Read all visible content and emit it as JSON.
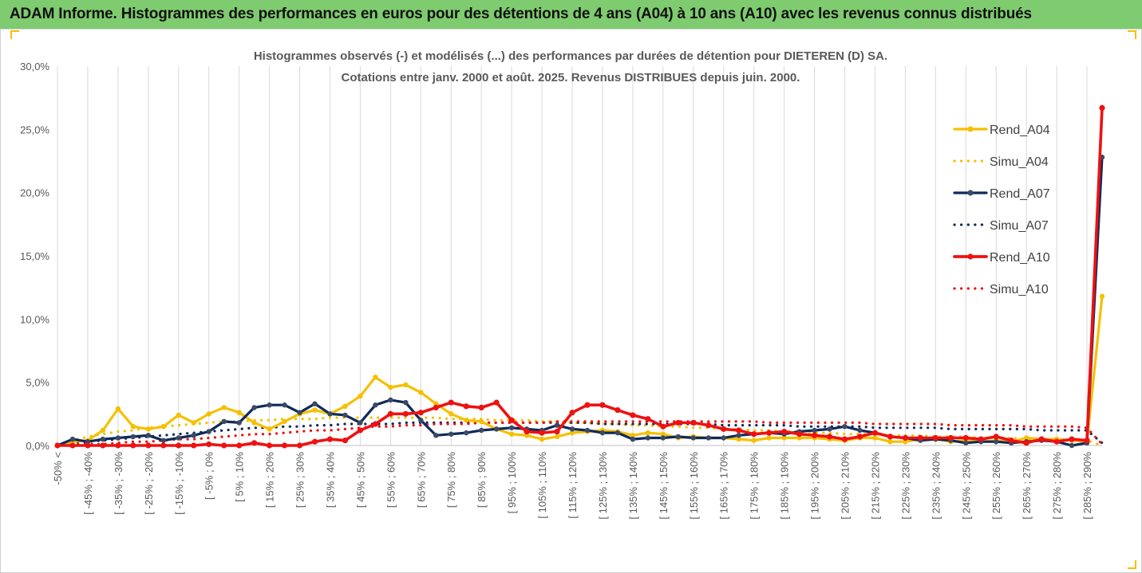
{
  "banner": {
    "title": "ADAM Informe. Histogrammes des performances en euros pour des détentions de 4 ans (A04) à 10 ans (A10) avec les revenus connus distribués"
  },
  "colors": {
    "banner": "#7fcb6f",
    "A04": "#f5c000",
    "A07": "#0f2a5a",
    "A10": "#ee1111",
    "grid": "#d9d9d9"
  },
  "chart_data": {
    "type": "line",
    "title": "Histogrammes observés (-) et modélisés (...) des performances par durées de détention pour DIETEREN (D) SA.",
    "subtitle": "Cotations entre janv. 2000 et août. 2025. Revenus DISTRIBUES depuis juin. 2000.",
    "ylim": [
      0,
      30
    ],
    "yticks": [
      "0,0%",
      "5,0%",
      "10,0%",
      "15,0%",
      "20,0%",
      "25,0%",
      "30,0%"
    ],
    "yticks_values": [
      0,
      5,
      10,
      15,
      20,
      25,
      30
    ],
    "xtick_labels": [
      "-50% <",
      "[ -45% ; -40%",
      "[ -35% ; -30%",
      "[ -25% ; -20%",
      "[ -15% ; -10%",
      "[ -5% ; 0%",
      "[ 5% ; 10%",
      "[ 15% ; 20%",
      "[ 25% ; 30%",
      "[ 35% ; 40%",
      "[ 45% ; 50%",
      "[ 55% ; 60%",
      "[ 65% ; 70%",
      "[ 75% ; 80%",
      "[ 85% ; 90%",
      "[ 95% ; 100%",
      "[ 105% ; 110%",
      "[ 115% ; 120%",
      "[ 125% ; 130%",
      "[ 135% ; 140%",
      "[ 145% ; 150%",
      "[ 155% ; 160%",
      "[ 165% ; 170%",
      "[ 175% ; 180%",
      "[ 185% ; 190%",
      "[ 195% ; 200%",
      "[ 205% ; 210%",
      "[ 215% ; 220%",
      "[ 225% ; 230%",
      "[ 235% ; 240%",
      "[ 245% ; 250%",
      "[ 255% ; 260%",
      "[ 265% ; 270%",
      "[ 275% ; 280%",
      "[ 285% ; 290%"
    ],
    "n_bins": 70,
    "legend_position": "right",
    "grid": "vertical",
    "series": [
      {
        "name": "Rend_A04",
        "style": "solid",
        "color": "#f5c000",
        "values": [
          0.0,
          0.3,
          0.4,
          1.2,
          2.9,
          1.5,
          1.3,
          1.5,
          2.4,
          1.8,
          2.5,
          3.0,
          2.6,
          1.8,
          1.3,
          1.9,
          2.5,
          2.8,
          2.5,
          3.1,
          3.9,
          5.4,
          4.6,
          4.8,
          4.2,
          3.3,
          2.5,
          2.0,
          1.9,
          1.3,
          0.9,
          0.8,
          0.5,
          0.7,
          1.0,
          1.1,
          1.2,
          1.1,
          0.8,
          1.0,
          0.9,
          0.6,
          0.7,
          0.6,
          0.6,
          0.5,
          0.4,
          0.6,
          0.6,
          0.6,
          0.6,
          0.5,
          0.4,
          0.6,
          0.6,
          0.3,
          0.3,
          0.5,
          0.5,
          0.3,
          0.4,
          0.3,
          0.4,
          0.3,
          0.6,
          0.5,
          0.5,
          0.4,
          0.3,
          11.8
        ]
      },
      {
        "name": "Simu_A04",
        "style": "dotted",
        "color": "#f5c000",
        "values": [
          0.1,
          0.4,
          0.7,
          0.9,
          1.1,
          1.2,
          1.4,
          1.5,
          1.6,
          1.7,
          1.8,
          1.9,
          1.9,
          2.0,
          2.0,
          2.1,
          2.1,
          2.1,
          2.2,
          2.2,
          2.2,
          2.2,
          2.2,
          2.2,
          2.2,
          2.2,
          2.1,
          2.1,
          2.1,
          2.0,
          2.0,
          2.0,
          1.9,
          1.9,
          1.8,
          1.8,
          1.7,
          1.7,
          1.6,
          1.6,
          1.5,
          1.5,
          1.4,
          1.4,
          1.3,
          1.3,
          1.2,
          1.2,
          1.1,
          1.1,
          1.0,
          1.0,
          0.9,
          0.9,
          0.9,
          0.8,
          0.8,
          0.8,
          0.7,
          0.7,
          0.7,
          0.6,
          0.6,
          0.6,
          0.5,
          0.5,
          0.5,
          0.5,
          0.4,
          0.0
        ]
      },
      {
        "name": "Rend_A07",
        "style": "solid",
        "color": "#0f2a5a",
        "values": [
          0.0,
          0.5,
          0.3,
          0.5,
          0.6,
          0.7,
          0.8,
          0.4,
          0.6,
          0.8,
          1.1,
          1.9,
          1.8,
          3.0,
          3.2,
          3.2,
          2.6,
          3.3,
          2.5,
          2.4,
          1.8,
          3.2,
          3.6,
          3.4,
          2.0,
          0.8,
          0.9,
          1.0,
          1.2,
          1.3,
          1.4,
          1.3,
          1.2,
          1.6,
          1.3,
          1.2,
          1.0,
          1.0,
          0.5,
          0.6,
          0.6,
          0.7,
          0.6,
          0.6,
          0.6,
          0.8,
          0.9,
          1.0,
          0.9,
          1.1,
          1.2,
          1.3,
          1.5,
          1.2,
          1.0,
          0.7,
          0.6,
          0.4,
          0.5,
          0.4,
          0.2,
          0.3,
          0.3,
          0.2,
          0.3,
          0.4,
          0.3,
          0.0,
          0.2,
          22.8
        ]
      },
      {
        "name": "Simu_A07",
        "style": "dotted",
        "color": "#0f2a5a",
        "values": [
          0.0,
          0.2,
          0.3,
          0.4,
          0.5,
          0.6,
          0.7,
          0.8,
          0.9,
          1.0,
          1.1,
          1.2,
          1.3,
          1.4,
          1.4,
          1.5,
          1.5,
          1.6,
          1.6,
          1.7,
          1.7,
          1.7,
          1.7,
          1.8,
          1.8,
          1.8,
          1.8,
          1.8,
          1.8,
          1.8,
          1.8,
          1.8,
          1.8,
          1.8,
          1.8,
          1.8,
          1.7,
          1.7,
          1.7,
          1.7,
          1.7,
          1.7,
          1.7,
          1.7,
          1.6,
          1.6,
          1.6,
          1.6,
          1.6,
          1.5,
          1.5,
          1.5,
          1.5,
          1.5,
          1.4,
          1.4,
          1.4,
          1.4,
          1.4,
          1.3,
          1.3,
          1.3,
          1.3,
          1.3,
          1.3,
          1.2,
          1.2,
          1.2,
          1.2,
          0.2
        ]
      },
      {
        "name": "Rend_A10",
        "style": "solid",
        "color": "#ee1111",
        "values": [
          0.0,
          0.0,
          0.0,
          0.0,
          0.0,
          0.0,
          0.0,
          0.0,
          0.0,
          0.0,
          0.1,
          0.0,
          0.0,
          0.2,
          0.0,
          0.0,
          0.0,
          0.3,
          0.5,
          0.4,
          1.2,
          1.7,
          2.5,
          2.5,
          2.6,
          3.0,
          3.4,
          3.1,
          3.0,
          3.4,
          2.0,
          1.1,
          1.0,
          1.1,
          2.6,
          3.2,
          3.2,
          2.8,
          2.4,
          2.1,
          1.5,
          1.8,
          1.8,
          1.6,
          1.3,
          1.2,
          0.9,
          1.0,
          1.1,
          0.9,
          0.8,
          0.7,
          0.5,
          0.7,
          1.0,
          0.7,
          0.6,
          0.6,
          0.6,
          0.6,
          0.6,
          0.5,
          0.7,
          0.4,
          0.2,
          0.5,
          0.3,
          0.5,
          0.4,
          26.7
        ]
      },
      {
        "name": "Simu_A10",
        "style": "dotted",
        "color": "#ee1111",
        "values": [
          0.0,
          0.1,
          0.1,
          0.1,
          0.2,
          0.3,
          0.3,
          0.4,
          0.5,
          0.5,
          0.6,
          0.7,
          0.8,
          0.9,
          0.9,
          1.0,
          1.1,
          1.2,
          1.2,
          1.3,
          1.4,
          1.5,
          1.5,
          1.6,
          1.6,
          1.7,
          1.7,
          1.7,
          1.8,
          1.8,
          1.8,
          1.8,
          1.8,
          1.9,
          1.9,
          1.9,
          1.9,
          1.9,
          1.9,
          1.9,
          1.9,
          1.9,
          1.9,
          1.9,
          1.9,
          1.9,
          1.9,
          1.8,
          1.8,
          1.8,
          1.8,
          1.8,
          1.8,
          1.8,
          1.7,
          1.7,
          1.7,
          1.7,
          1.7,
          1.6,
          1.6,
          1.6,
          1.6,
          1.6,
          1.5,
          1.5,
          1.5,
          1.5,
          1.4,
          0.1
        ]
      }
    ]
  }
}
